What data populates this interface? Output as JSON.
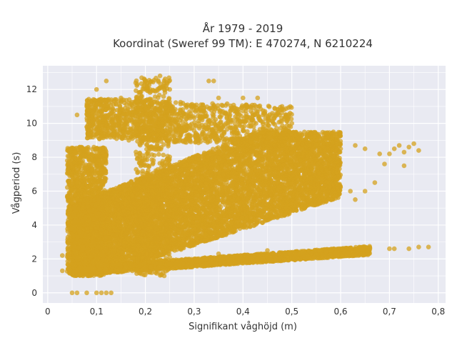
{
  "chart_data": {
    "type": "scatter",
    "title_lines": [
      "År 1979 - 2019",
      "Koordinat (Sweref 99 TM): E 470274, N 6210224"
    ],
    "xlabel": "Signifikant våghöjd (m)",
    "ylabel": "Vågperiod (s)",
    "xlim": [
      -0.01,
      0.815
    ],
    "ylim": [
      -0.6,
      13.4
    ],
    "x_ticks": [
      0,
      0.1,
      0.2,
      0.3,
      0.4,
      0.5,
      0.6,
      0.7,
      0.8
    ],
    "x_tick_labels": [
      "0",
      "0,1",
      "0,2",
      "0,3",
      "0,4",
      "0,5",
      "0,6",
      "0,7",
      "0,8"
    ],
    "y_ticks": [
      0,
      2,
      4,
      6,
      8,
      10,
      12
    ],
    "y_tick_labels": [
      "0",
      "2",
      "4",
      "6",
      "8",
      "10",
      "12"
    ],
    "grid": true,
    "background_color": "#e9eaf2",
    "marker_color": "#d4a21e",
    "points_sample": [
      {
        "x": 0.05,
        "y": 0.0
      },
      {
        "x": 0.06,
        "y": 0.0
      },
      {
        "x": 0.08,
        "y": 0.0
      },
      {
        "x": 0.1,
        "y": 0.0
      },
      {
        "x": 0.11,
        "y": 0.0
      },
      {
        "x": 0.12,
        "y": 0.0
      },
      {
        "x": 0.13,
        "y": 0.0
      },
      {
        "x": 0.03,
        "y": 2.2
      },
      {
        "x": 0.03,
        "y": 1.3
      },
      {
        "x": 0.05,
        "y": 1.9
      },
      {
        "x": 0.06,
        "y": 6.5
      },
      {
        "x": 0.06,
        "y": 10.5
      },
      {
        "x": 0.08,
        "y": 11.0
      },
      {
        "x": 0.1,
        "y": 12.0
      },
      {
        "x": 0.12,
        "y": 12.5
      },
      {
        "x": 0.15,
        "y": 11.5
      },
      {
        "x": 0.2,
        "y": 12.5
      },
      {
        "x": 0.23,
        "y": 12.8
      },
      {
        "x": 0.25,
        "y": 12.0
      },
      {
        "x": 0.33,
        "y": 12.5
      },
      {
        "x": 0.34,
        "y": 12.5
      },
      {
        "x": 0.35,
        "y": 11.5
      },
      {
        "x": 0.4,
        "y": 11.5
      },
      {
        "x": 0.43,
        "y": 11.5
      },
      {
        "x": 0.48,
        "y": 11.0
      },
      {
        "x": 0.5,
        "y": 10.0
      },
      {
        "x": 0.55,
        "y": 9.0
      },
      {
        "x": 0.6,
        "y": 8.5
      },
      {
        "x": 0.63,
        "y": 8.7
      },
      {
        "x": 0.65,
        "y": 8.5
      },
      {
        "x": 0.68,
        "y": 8.2
      },
      {
        "x": 0.7,
        "y": 8.2
      },
      {
        "x": 0.71,
        "y": 8.5
      },
      {
        "x": 0.72,
        "y": 8.7
      },
      {
        "x": 0.73,
        "y": 8.3
      },
      {
        "x": 0.74,
        "y": 8.6
      },
      {
        "x": 0.75,
        "y": 8.8
      },
      {
        "x": 0.76,
        "y": 8.4
      },
      {
        "x": 0.69,
        "y": 7.6
      },
      {
        "x": 0.73,
        "y": 7.5
      },
      {
        "x": 0.56,
        "y": 6.0
      },
      {
        "x": 0.58,
        "y": 5.5
      },
      {
        "x": 0.62,
        "y": 6.0
      },
      {
        "x": 0.63,
        "y": 5.5
      },
      {
        "x": 0.65,
        "y": 6.0
      },
      {
        "x": 0.67,
        "y": 6.5
      },
      {
        "x": 0.66,
        "y": 2.6
      },
      {
        "x": 0.7,
        "y": 2.6
      },
      {
        "x": 0.71,
        "y": 2.6
      },
      {
        "x": 0.74,
        "y": 2.6
      },
      {
        "x": 0.76,
        "y": 2.7
      },
      {
        "x": 0.78,
        "y": 2.7
      },
      {
        "x": 0.6,
        "y": 2.6
      },
      {
        "x": 0.62,
        "y": 2.6
      },
      {
        "x": 0.55,
        "y": 2.5
      },
      {
        "x": 0.45,
        "y": 2.5
      },
      {
        "x": 0.35,
        "y": 2.3
      },
      {
        "x": 0.25,
        "y": 2.1
      }
    ],
    "dense_regions": [
      {
        "x_range": [
          0.05,
          0.6
        ],
        "y_range": [
          1.0,
          9.5
        ]
      },
      {
        "x_range": [
          0.1,
          0.66
        ],
        "y_range": [
          1.8,
          2.6
        ]
      },
      {
        "x_range": [
          0.08,
          0.5
        ],
        "y_range": [
          9.5,
          11.5
        ]
      }
    ]
  }
}
